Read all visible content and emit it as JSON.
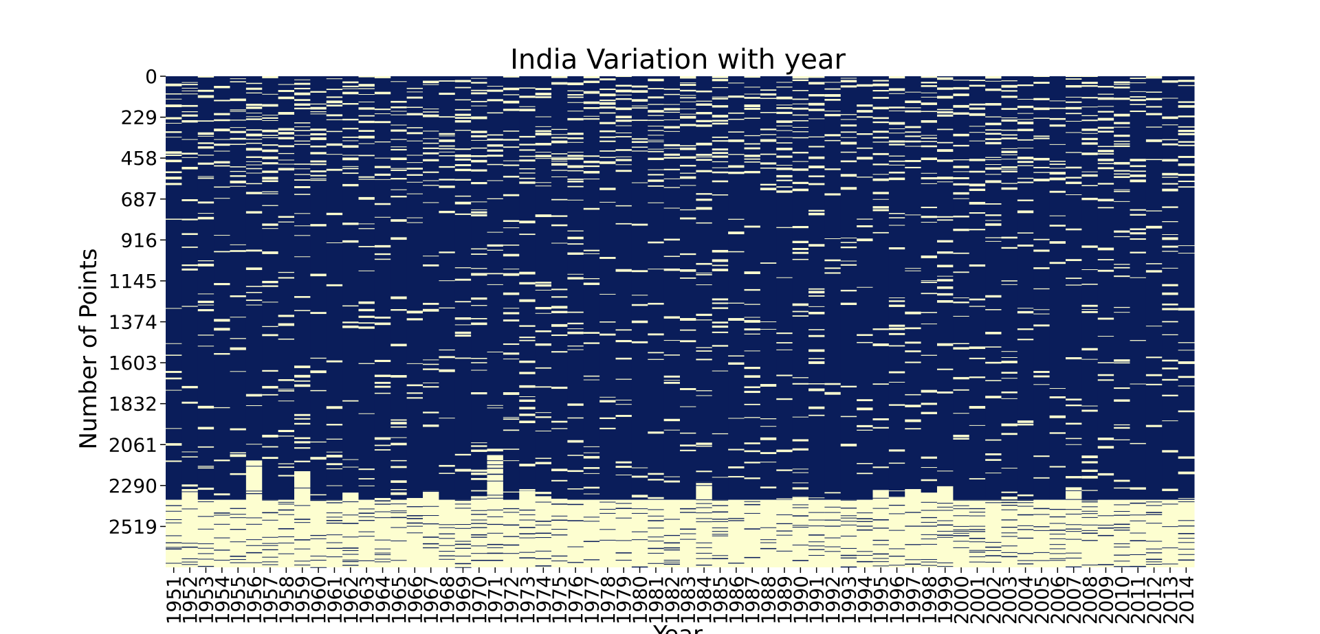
{
  "chart_data": {
    "type": "heatmap",
    "title": "India Variation with year",
    "xlabel": "Year",
    "ylabel": "Number of Points",
    "x_categories": [
      "1951",
      "1952",
      "1953",
      "1954",
      "1955",
      "1956",
      "1957",
      "1958",
      "1959",
      "1960",
      "1961",
      "1962",
      "1963",
      "1964",
      "1965",
      "1966",
      "1967",
      "1968",
      "1969",
      "1970",
      "1971",
      "1972",
      "1973",
      "1974",
      "1975",
      "1976",
      "1977",
      "1978",
      "1979",
      "1980",
      "1981",
      "1982",
      "1983",
      "1984",
      "1985",
      "1986",
      "1987",
      "1988",
      "1989",
      "1990",
      "1991",
      "1992",
      "1993",
      "1994",
      "1995",
      "1996",
      "1997",
      "1998",
      "1999",
      "2000",
      "2001",
      "2002",
      "2003",
      "2004",
      "2005",
      "2006",
      "2007",
      "2008",
      "2009",
      "2010",
      "2011",
      "2012",
      "2013",
      "2014"
    ],
    "y_ticks": [
      "0",
      "229",
      "458",
      "687",
      "916",
      "1145",
      "1374",
      "1603",
      "1832",
      "2061",
      "2290",
      "2519"
    ],
    "ylim": [
      0,
      2748
    ],
    "colors": {
      "filled": "#0a1d5a",
      "missing": "#fdfed0"
    },
    "approx_missing_start_row": [
      2370,
      2310,
      2370,
      2370,
      2370,
      2150,
      2370,
      2370,
      2210,
      2370,
      2370,
      2330,
      2370,
      2360,
      2370,
      2360,
      2320,
      2370,
      2370,
      2350,
      2120,
      2370,
      2320,
      2350,
      2370,
      2370,
      2370,
      2370,
      2370,
      2370,
      2370,
      2370,
      2370,
      2270,
      2370,
      2370,
      2370,
      2370,
      2370,
      2350,
      2370,
      2370,
      2370,
      2370,
      2320,
      2350,
      2310,
      2330,
      2300,
      2370,
      2370,
      2370,
      2370,
      2370,
      2370,
      2370,
      2300,
      2370,
      2370,
      2370,
      2370,
      2370,
      2370,
      2370
    ]
  }
}
